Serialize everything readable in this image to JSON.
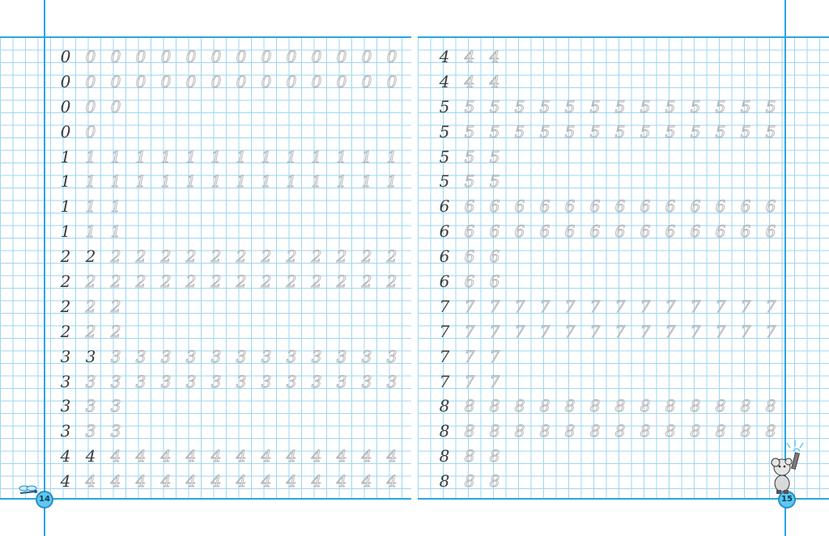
{
  "left_page": {
    "page_number": "14",
    "rows": [
      {
        "digit": "0",
        "solid": 1,
        "traced": 13
      },
      {
        "digit": "0",
        "solid": 1,
        "traced": 13
      },
      {
        "digit": "0",
        "solid": 1,
        "traced": 2
      },
      {
        "digit": "0",
        "solid": 1,
        "traced": 1
      },
      {
        "digit": "1",
        "solid": 1,
        "traced": 13
      },
      {
        "digit": "1",
        "solid": 1,
        "traced": 13
      },
      {
        "digit": "1",
        "solid": 1,
        "traced": 2
      },
      {
        "digit": "1",
        "solid": 1,
        "traced": 2
      },
      {
        "digit": "2",
        "solid": 2,
        "traced": 12
      },
      {
        "digit": "2",
        "solid": 1,
        "traced": 13
      },
      {
        "digit": "2",
        "solid": 1,
        "traced": 2
      },
      {
        "digit": "2",
        "solid": 1,
        "traced": 2
      },
      {
        "digit": "3",
        "solid": 2,
        "traced": 12
      },
      {
        "digit": "3",
        "solid": 1,
        "traced": 13
      },
      {
        "digit": "3",
        "solid": 1,
        "traced": 2
      },
      {
        "digit": "3",
        "solid": 1,
        "traced": 2
      },
      {
        "digit": "4",
        "solid": 2,
        "traced": 12
      },
      {
        "digit": "4",
        "solid": 1,
        "traced": 13
      }
    ]
  },
  "right_page": {
    "page_number": "15",
    "rows": [
      {
        "digit": "4",
        "solid": 1,
        "traced": 2
      },
      {
        "digit": "4",
        "solid": 1,
        "traced": 2
      },
      {
        "digit": "5",
        "solid": 1,
        "traced": 13
      },
      {
        "digit": "5",
        "solid": 1,
        "traced": 13
      },
      {
        "digit": "5",
        "solid": 1,
        "traced": 2
      },
      {
        "digit": "5",
        "solid": 1,
        "traced": 2
      },
      {
        "digit": "6",
        "solid": 1,
        "traced": 13
      },
      {
        "digit": "6",
        "solid": 1,
        "traced": 13
      },
      {
        "digit": "6",
        "solid": 1,
        "traced": 2
      },
      {
        "digit": "6",
        "solid": 1,
        "traced": 2
      },
      {
        "digit": "7",
        "solid": 1,
        "traced": 13
      },
      {
        "digit": "7",
        "solid": 1,
        "traced": 13
      },
      {
        "digit": "7",
        "solid": 1,
        "traced": 2
      },
      {
        "digit": "7",
        "solid": 1,
        "traced": 2
      },
      {
        "digit": "8",
        "solid": 1,
        "traced": 13
      },
      {
        "digit": "8",
        "solid": 1,
        "traced": 13
      },
      {
        "digit": "8",
        "solid": 1,
        "traced": 2
      },
      {
        "digit": "8",
        "solid": 1,
        "traced": 2
      }
    ]
  },
  "colors": {
    "grid": "#9fd6f2",
    "margin_line": "#2aa6e0",
    "solid_digit": "#3a3a3a",
    "traced_digit": "#b9b9b9",
    "page_badge": "#5cc8f0"
  },
  "icons": {
    "left_corner": "dragonfly-icon",
    "right_corner": "mouse-with-pencil-icon"
  }
}
